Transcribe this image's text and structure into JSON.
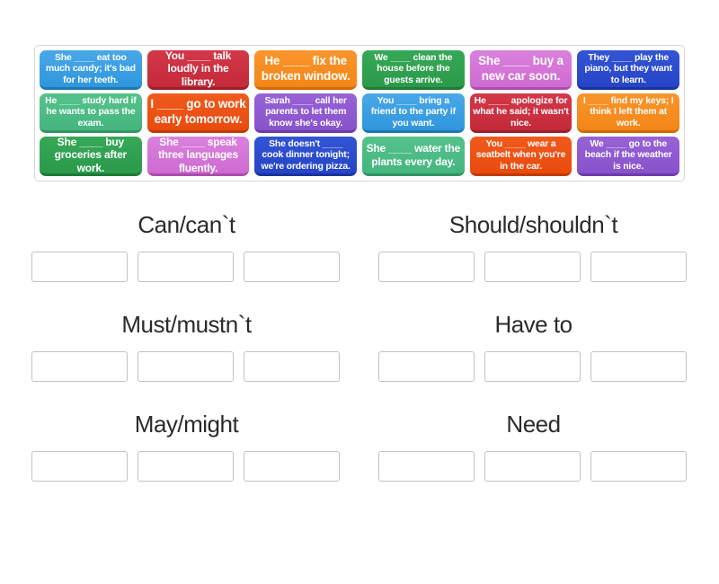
{
  "palette": {
    "lightblue": {
      "top": "#4aa8e8",
      "base": "#2f96dd",
      "dark": "#1f78b5"
    },
    "crimson": {
      "top": "#d23848",
      "base": "#c42a3a",
      "dark": "#9a1f2d"
    },
    "orange": {
      "top": "#f9952c",
      "base": "#f48618",
      "dark": "#cf6c09"
    },
    "green": {
      "top": "#37a857",
      "base": "#2a9a4a",
      "dark": "#1e7a38"
    },
    "orchid": {
      "top": "#da81dd",
      "base": "#cf6ad2",
      "dark": "#ad4cb0"
    },
    "royalblue": {
      "top": "#3354d4",
      "base": "#2645c6",
      "dark": "#1b339e"
    },
    "seagreen": {
      "top": "#55c28c",
      "base": "#45b57e",
      "dark": "#339463"
    },
    "orangered": {
      "top": "#f05a1d",
      "base": "#e94b0d",
      "dark": "#c23b05"
    },
    "purple": {
      "top": "#9763d6",
      "base": "#8852cc",
      "dark": "#6c3cab"
    }
  },
  "tiles": [
    {
      "text": "She ____ eat too much candy; it's bad for her teeth.",
      "color": "lightblue"
    },
    {
      "text": "You ____ talk loudly in the library.",
      "color": "crimson"
    },
    {
      "text": "He ____ fix the broken window.",
      "color": "orange"
    },
    {
      "text": "We ____ clean the house before the guests arrive.",
      "color": "green"
    },
    {
      "text": "She ____ buy a new car soon.",
      "color": "orchid"
    },
    {
      "text": "They ____ play the piano, but they want to learn.",
      "color": "royalblue"
    },
    {
      "text": "He ____ study hard if he wants to pass the exam.",
      "color": "seagreen"
    },
    {
      "text": "I ____ go to work early tomorrow.",
      "color": "orangered"
    },
    {
      "text": "Sarah ____ call her parents to let them know she's okay.",
      "color": "purple"
    },
    {
      "text": "You ____ bring a friend to the party if you want.",
      "color": "lightblue"
    },
    {
      "text": "He ____ apologize for what he said; it wasn't nice.",
      "color": "crimson"
    },
    {
      "text": "I ____ find my keys; I think I left them at work.",
      "color": "orange"
    },
    {
      "text": "She ____ buy groceries after work.",
      "color": "green"
    },
    {
      "text": "She ____ speak three languages fluently.",
      "color": "orchid"
    },
    {
      "text": "She doesn't ____ cook dinner tonight; we're ordering pizza.",
      "color": "royalblue"
    },
    {
      "text": "She ____ water the plants every day.",
      "color": "seagreen"
    },
    {
      "text": "You ____ wear a seatbelt when you're in the car.",
      "color": "orangered"
    },
    {
      "text": "We ____ go to the beach if the weather is nice.",
      "color": "purple"
    }
  ],
  "groups": [
    {
      "label": "Can/can`t",
      "slots": 3
    },
    {
      "label": "Should/shouldn`t",
      "slots": 3
    },
    {
      "label": "Must/mustn`t",
      "slots": 3
    },
    {
      "label": "Have to",
      "slots": 3
    },
    {
      "label": "May/might",
      "slots": 3
    },
    {
      "label": "Need",
      "slots": 3
    }
  ]
}
